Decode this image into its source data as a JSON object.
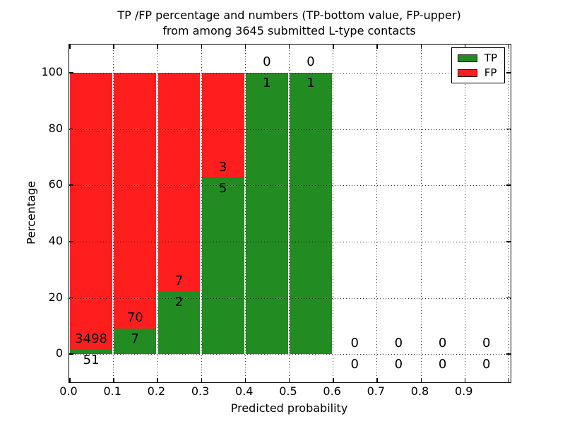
{
  "title": {
    "line1": "TP /FP percentage and numbers (TP-bottom value, FP-upper)",
    "line2": "from among 3645 submitted L-type contacts"
  },
  "axes": {
    "xlabel": "Predicted probability",
    "ylabel": "Percentage",
    "x_tick_labels": [
      "0.0",
      "0.1",
      "0.2",
      "0.3",
      "0.4",
      "0.5",
      "0.6",
      "0.7",
      "0.8",
      "0.9"
    ],
    "y_tick_labels": [
      "0",
      "20",
      "40",
      "60",
      "80",
      "100"
    ]
  },
  "legend": {
    "items": [
      {
        "label": "TP",
        "color": "#228B22"
      },
      {
        "label": "FP",
        "color": "#FF1E1E"
      }
    ]
  },
  "chart_data": {
    "type": "bar",
    "stacked": true,
    "percent_normalized_per_bin": true,
    "title": "TP /FP percentage and numbers (TP-bottom value, FP-upper) from among 3645 submitted L-type contacts",
    "xlabel": "Predicted probability",
    "ylabel": "Percentage",
    "total_contacts": 3645,
    "bin_width": 0.1,
    "bin_starts": [
      0.0,
      0.1,
      0.2,
      0.3,
      0.4,
      0.5,
      0.6,
      0.7,
      0.8,
      0.9
    ],
    "series": [
      {
        "name": "TP",
        "color": "#228B22",
        "counts": [
          51,
          7,
          2,
          5,
          1,
          1,
          0,
          0,
          0,
          0
        ]
      },
      {
        "name": "FP",
        "color": "#FF1E1E",
        "counts": [
          3498,
          70,
          7,
          3,
          0,
          0,
          0,
          0,
          0,
          0
        ]
      }
    ],
    "tp_percent_by_bin": [
      1.44,
      9.09,
      22.22,
      62.5,
      100,
      100,
      null,
      null,
      null,
      null
    ],
    "xlim": [
      0,
      1.005
    ],
    "ylim": [
      -10,
      110
    ],
    "y_gridlines": [
      0,
      20,
      40,
      60,
      80,
      100
    ],
    "grid": "dotted",
    "legend_position": "upper right"
  },
  "colors": {
    "tp": "#228B22",
    "fp": "#FF1E1E",
    "background": "#FFFFFF",
    "frame": "#000000",
    "grid": "#000000",
    "text": "#000000"
  }
}
